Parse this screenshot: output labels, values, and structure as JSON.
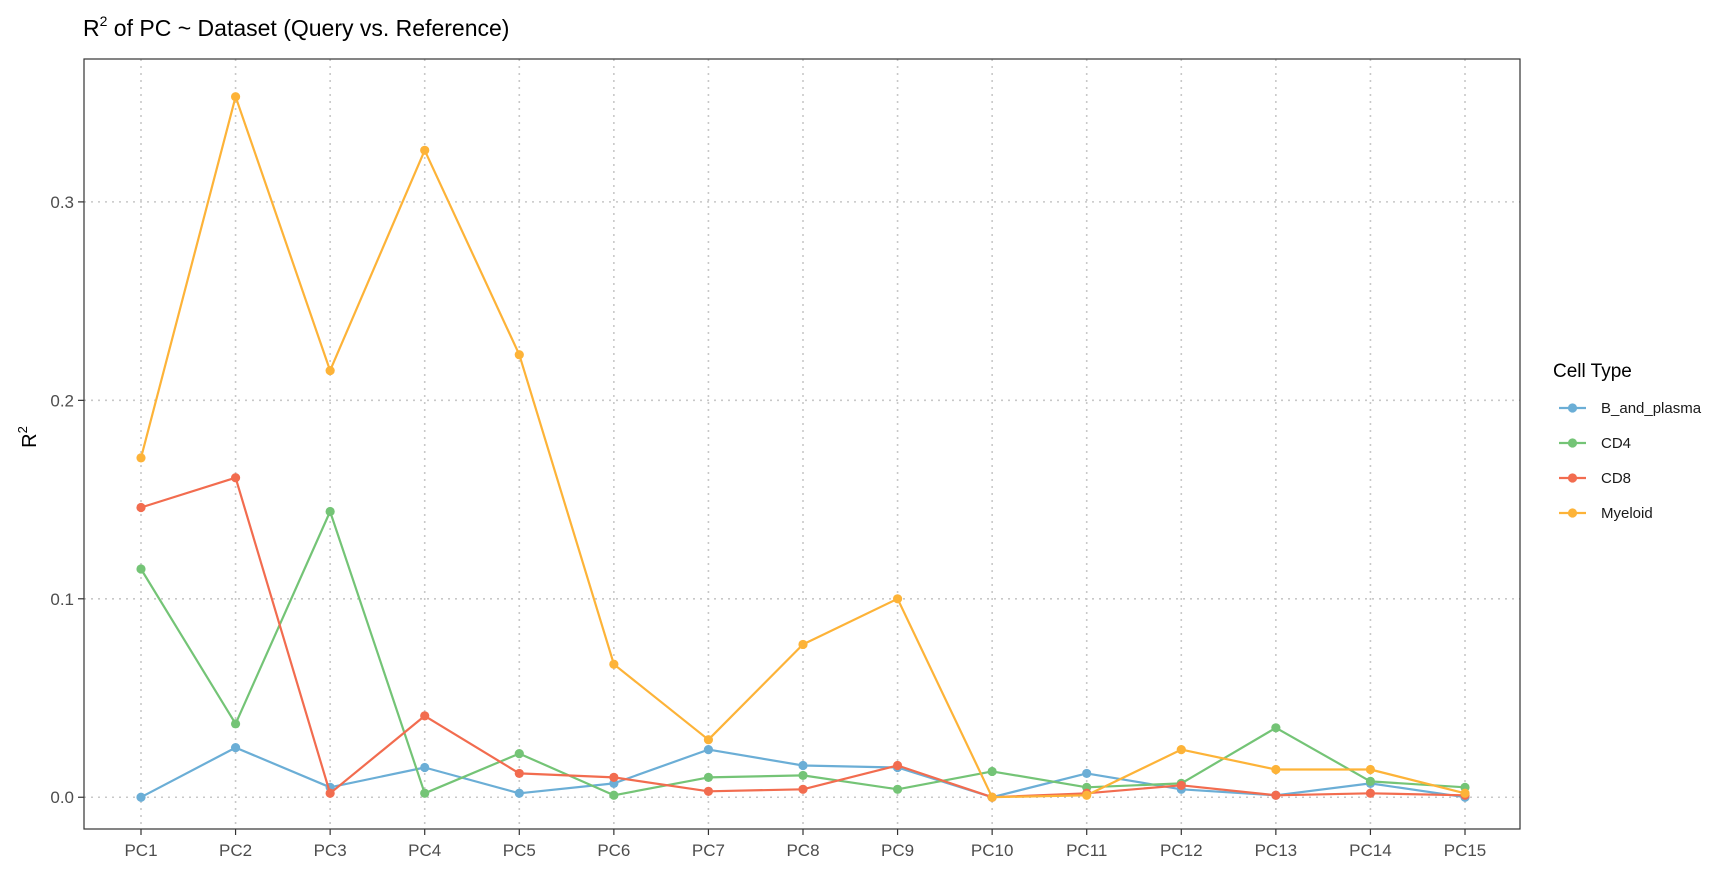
{
  "chart_data": {
    "type": "line",
    "title_prefix": "R",
    "title_superscript": "2",
    "title_rest": " of PC ~  Dataset (Query vs. Reference)",
    "xlabel": "",
    "ylabel_base": "R",
    "ylabel_superscript": "2",
    "ylim": [
      -0.016,
      0.372
    ],
    "yticks": [
      "0.0",
      "0.1",
      "0.2",
      "0.3"
    ],
    "ytick_values": [
      0.0,
      0.1,
      0.2,
      0.3
    ],
    "grid": true,
    "categories": [
      "PC1",
      "PC2",
      "PC3",
      "PC4",
      "PC5",
      "PC6",
      "PC7",
      "PC8",
      "PC9",
      "PC10",
      "PC11",
      "PC12",
      "PC13",
      "PC14",
      "PC15"
    ],
    "legend": {
      "title": "Cell Type",
      "placement": "right"
    },
    "series": [
      {
        "name": "B_and_plasma",
        "color": "#6baed6",
        "values": [
          0.0,
          0.025,
          0.005,
          0.015,
          0.002,
          0.007,
          0.024,
          0.016,
          0.015,
          0.0,
          0.012,
          0.004,
          0.001,
          0.007,
          0.0
        ]
      },
      {
        "name": "CD4",
        "color": "#74c476",
        "values": [
          0.115,
          0.037,
          0.144,
          0.002,
          0.022,
          0.001,
          0.01,
          0.011,
          0.004,
          0.013,
          0.005,
          0.007,
          0.035,
          0.008,
          0.005
        ]
      },
      {
        "name": "CD8",
        "color": "#f26c4f",
        "values": [
          0.146,
          0.161,
          0.002,
          0.041,
          0.012,
          0.01,
          0.003,
          0.004,
          0.016,
          0.0,
          0.002,
          0.006,
          0.001,
          0.002,
          0.001
        ]
      },
      {
        "name": "Myeloid",
        "color": "#fdb338",
        "values": [
          0.171,
          0.353,
          0.215,
          0.326,
          0.223,
          0.067,
          0.029,
          0.077,
          0.1,
          0.0,
          0.001,
          0.024,
          0.014,
          0.014,
          0.002
        ]
      }
    ]
  }
}
